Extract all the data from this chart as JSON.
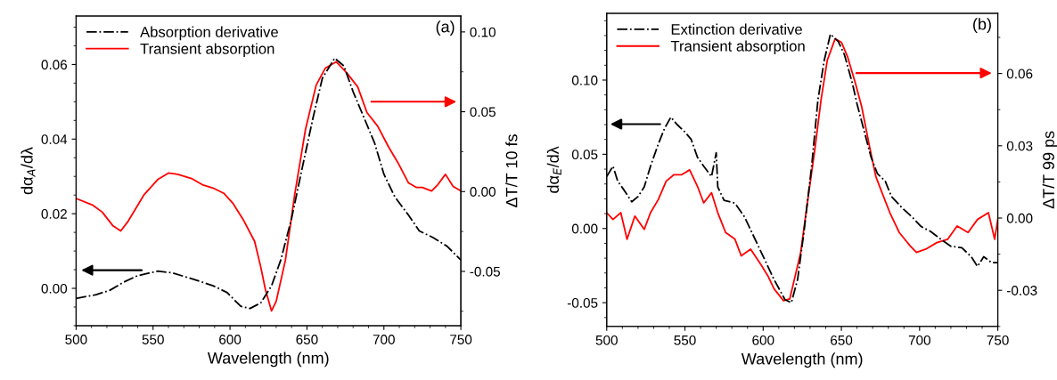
{
  "chart_data": [
    {
      "type": "line",
      "xlabel": "Wavelength (nm)",
      "ylabel": "dα$_{A}$/dλ",
      "y2label": "ΔT/T 10 fs",
      "annotations": [
        "(a)"
      ],
      "xlim": [
        500,
        750
      ],
      "xticks": [
        500,
        550,
        600,
        650,
        700,
        750
      ],
      "ylim": [
        -0.01,
        0.073
      ],
      "yticks": [
        {
          "value": 0,
          "label": "0.00"
        },
        {
          "value": 0.02,
          "label": "0.02"
        },
        {
          "value": 0.04,
          "label": "0.04"
        },
        {
          "value": 0.06,
          "label": "0.06"
        }
      ],
      "y2lim": [
        -0.084,
        0.11
      ],
      "y2ticks": [
        {
          "value": -0.05,
          "label": "-0.05"
        },
        {
          "value": 0,
          "label": "0.00"
        },
        {
          "value": 0.05,
          "label": "0.05"
        },
        {
          "value": 0.1,
          "label": "0.10"
        }
      ],
      "grid": false,
      "legend": "top left",
      "series": [
        {
          "name": "Absorption derivative",
          "color": "#000000",
          "line_style": "dashdot",
          "x": [
            500,
            513,
            522,
            531,
            540,
            553,
            562,
            575,
            589,
            598,
            607,
            613,
            620,
            627,
            633,
            640,
            647,
            654,
            660,
            668,
            674,
            680,
            687,
            694,
            700,
            707,
            716,
            723,
            732,
            741,
            750
          ],
          "values": [
            -0.0027,
            -0.0017,
            -0.0005,
            0.0017,
            0.0034,
            0.0046,
            0.0042,
            0.0026,
            0.0007,
            -0.0011,
            -0.0048,
            -0.0054,
            -0.0039,
            0.0007,
            0.0076,
            0.0187,
            0.0324,
            0.0458,
            0.0563,
            0.0617,
            0.0596,
            0.0527,
            0.0458,
            0.0389,
            0.0306,
            0.0246,
            0.0196,
            0.0154,
            0.0136,
            0.0113,
            0.0076
          ]
        },
        {
          "name": "Transient absorption",
          "color": "#ff0000",
          "line_style": "solid",
          "axis": "y2",
          "x": [
            500,
            511,
            517,
            524,
            529,
            534,
            544,
            553,
            560,
            566,
            575,
            582,
            589,
            596,
            602,
            609,
            616,
            620,
            623,
            627,
            630,
            636,
            642,
            649,
            656,
            662,
            669,
            676,
            683,
            689,
            696,
            703,
            709,
            716,
            721,
            725,
            731,
            735,
            740,
            745,
            750
          ],
          "values": [
            -0.0043,
            -0.0086,
            -0.0129,
            -0.0215,
            -0.0247,
            -0.0183,
            -0.0022,
            0.0075,
            0.0116,
            0.0108,
            0.0082,
            0.0043,
            0.0022,
            -0.0011,
            -0.0075,
            -0.0183,
            -0.0312,
            -0.0473,
            -0.0613,
            -0.0748,
            -0.0688,
            -0.043,
            -0.0022,
            0.0387,
            0.0667,
            0.0774,
            0.0813,
            0.0742,
            0.0656,
            0.0495,
            0.0409,
            0.028,
            0.0183,
            0.0054,
            0.0026,
            0.0026,
            0.0004,
            0.0043,
            0.0108,
            0.0032,
            0.0004
          ]
        }
      ]
    },
    {
      "type": "line",
      "xlabel": "Wavelength (nm)",
      "ylabel": "dα$_{E}$/dλ",
      "y2label": "ΔT/T 99 ps",
      "annotations": [
        "(b)"
      ],
      "xlim": [
        500,
        750
      ],
      "xticks": [
        500,
        550,
        600,
        650,
        700,
        750
      ],
      "ylim": [
        -0.066,
        0.145
      ],
      "yticks": [
        {
          "value": -0.05,
          "label": "-0.05"
        },
        {
          "value": 0,
          "label": "0.00"
        },
        {
          "value": 0.05,
          "label": "0.05"
        },
        {
          "value": 0.1,
          "label": "0.10"
        }
      ],
      "y2lim": [
        -0.045,
        0.085
      ],
      "y2ticks": [
        {
          "value": -0.03,
          "label": "-0.03"
        },
        {
          "value": 0,
          "label": "0.00"
        },
        {
          "value": 0.03,
          "label": "0.03"
        },
        {
          "value": 0.06,
          "label": "0.06"
        }
      ],
      "grid": false,
      "legend": "top left",
      "series": [
        {
          "name": "Extinction derivative",
          "color": "#000000",
          "line_style": "dashdot",
          "x": [
            500,
            504,
            507,
            511,
            516,
            520,
            524,
            528,
            533,
            537,
            541,
            545,
            550,
            554,
            558,
            562,
            567,
            570,
            571,
            575,
            582,
            588,
            594,
            601,
            607,
            614,
            618,
            622,
            626,
            631,
            635,
            639,
            643,
            648,
            652,
            657,
            660,
            665,
            669,
            673,
            678,
            682,
            689,
            695,
            701,
            707,
            714,
            720,
            727,
            733,
            737,
            741,
            746,
            750
          ],
          "values": [
            0.035,
            0.042,
            0.032,
            0.026,
            0.018,
            0.0215,
            0.028,
            0.042,
            0.057,
            0.0675,
            0.075,
            0.07,
            0.065,
            0.06,
            0.048,
            0.042,
            0.035,
            0.051,
            0.028,
            0.019,
            0.017,
            0.008,
            -0.0054,
            -0.021,
            -0.0345,
            -0.048,
            -0.05,
            -0.0345,
            -0.003,
            0.042,
            0.0865,
            0.113,
            0.131,
            0.126,
            0.117,
            0.098,
            0.084,
            0.064,
            0.048,
            0.037,
            0.032,
            0.0215,
            0.0137,
            0.008,
            0.0013,
            -0.002,
            -0.0076,
            -0.012,
            -0.013,
            -0.019,
            -0.0256,
            -0.019,
            -0.023,
            -0.023
          ]
        },
        {
          "name": "Transient absorption",
          "color": "#ff0000",
          "line_style": "solid",
          "axis": "y2",
          "x": [
            500,
            504,
            509,
            513,
            518,
            524,
            528,
            533,
            538,
            543,
            548,
            553,
            558,
            562,
            567,
            571,
            576,
            582,
            586,
            592,
            599,
            603,
            607,
            613,
            617,
            621,
            624,
            628,
            633,
            637,
            641,
            646,
            650,
            654,
            659,
            663,
            668,
            672,
            676,
            681,
            687,
            694,
            698,
            704,
            711,
            718,
            724,
            731,
            737,
            744,
            748,
            750
          ],
          "values": [
            0.0022,
            -0.0006,
            0.0022,
            -0.0088,
            0.0008,
            -0.0047,
            0.0022,
            0.0077,
            0.0153,
            0.018,
            0.018,
            0.02,
            0.0132,
            0.0063,
            0.0105,
            0.0022,
            -0.006,
            -0.0088,
            -0.0157,
            -0.0129,
            -0.0198,
            -0.024,
            -0.0294,
            -0.0343,
            -0.0336,
            -0.0226,
            -0.0143,
            0.005,
            0.0283,
            0.049,
            0.0655,
            0.0744,
            0.073,
            0.0669,
            0.0559,
            0.0462,
            0.0297,
            0.0173,
            0.0105,
            0.0022,
            -0.006,
            -0.0116,
            -0.0143,
            -0.0129,
            -0.0102,
            -0.0088,
            -0.0033,
            -0.006,
            -0.0006,
            0.0022,
            -0.0088,
            -0.0006
          ]
        }
      ]
    }
  ]
}
